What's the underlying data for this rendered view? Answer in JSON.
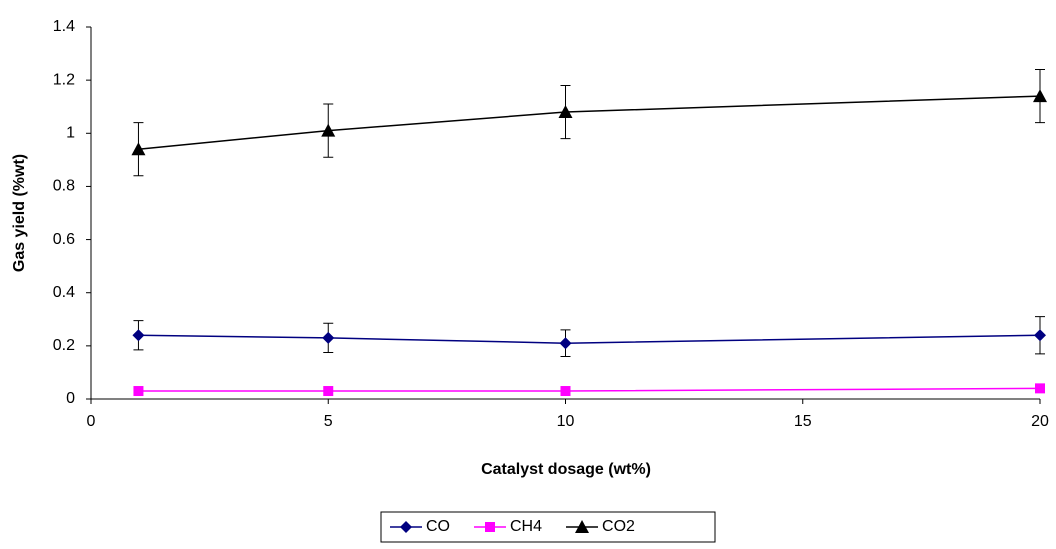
{
  "chart_data": {
    "type": "line",
    "x_label": "Catalyst dosage (wt%)",
    "y_label": "Gas yield (%wt)",
    "x": [
      1,
      5,
      10,
      20
    ],
    "xlim": [
      0,
      20
    ],
    "xticks": [
      0,
      5,
      10,
      15,
      20
    ],
    "ylim": [
      0,
      1.4
    ],
    "yticks": [
      0,
      0.2,
      0.4,
      0.6,
      0.8,
      1,
      1.2,
      1.4
    ],
    "grid": false,
    "legend": "bottom",
    "series": [
      {
        "name": "CO",
        "color": "#000080",
        "marker": "diamond",
        "values": [
          0.24,
          0.23,
          0.21,
          0.24
        ],
        "errors": [
          0.055,
          0.055,
          0.05,
          0.07
        ]
      },
      {
        "name": "CH4",
        "color": "#ff00ff",
        "marker": "square",
        "values": [
          0.03,
          0.03,
          0.03,
          0.04
        ]
      },
      {
        "name": "CO2",
        "color": "#000000",
        "marker": "triangle",
        "values": [
          0.94,
          1.01,
          1.08,
          1.14
        ],
        "errors": [
          0.1,
          0.1,
          0.1,
          0.1
        ]
      }
    ]
  }
}
